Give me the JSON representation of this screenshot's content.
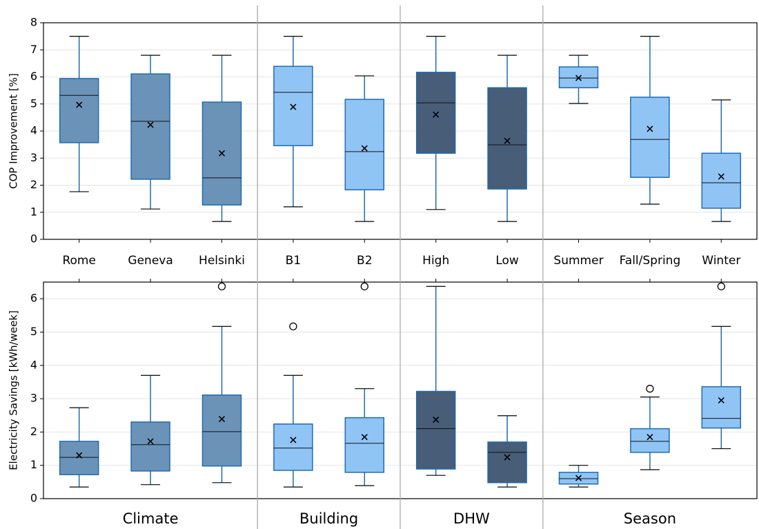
{
  "chart_data": [
    {
      "type": "box",
      "y_label": "COP Improvement [%]",
      "ylim": [
        0,
        8
      ],
      "yticks": [
        0,
        1,
        2,
        3,
        4,
        5,
        6,
        7,
        8
      ],
      "grid": true,
      "series": [
        {
          "color": "#6b93b8",
          "categories": [
            "Rome",
            "Geneva",
            "Helsinki"
          ],
          "boxes": [
            {
              "min": 1.76,
              "q1": 3.57,
              "median": 5.32,
              "q3": 5.94,
              "max": 7.5,
              "mean": 4.97,
              "outliers": []
            },
            {
              "min": 1.12,
              "q1": 2.22,
              "median": 4.36,
              "q3": 6.11,
              "max": 6.8,
              "mean": 4.23,
              "outliers": []
            },
            {
              "min": 0.66,
              "q1": 1.27,
              "median": 2.27,
              "q3": 5.07,
              "max": 6.8,
              "mean": 3.18,
              "outliers": []
            }
          ]
        },
        {
          "color": "#90c4f5",
          "categories": [
            "B1",
            "B2"
          ],
          "boxes": [
            {
              "min": 1.2,
              "q1": 3.46,
              "median": 5.43,
              "q3": 6.39,
              "max": 7.5,
              "mean": 4.89,
              "outliers": []
            },
            {
              "min": 0.66,
              "q1": 1.83,
              "median": 3.24,
              "q3": 5.17,
              "max": 6.04,
              "mean": 3.36,
              "outliers": []
            }
          ]
        },
        {
          "color": "#475d78",
          "categories": [
            "High",
            "Low"
          ],
          "boxes": [
            {
              "min": 1.1,
              "q1": 3.18,
              "median": 5.04,
              "q3": 6.17,
              "max": 7.5,
              "mean": 4.61,
              "outliers": []
            },
            {
              "min": 0.66,
              "q1": 1.86,
              "median": 3.49,
              "q3": 5.6,
              "max": 6.8,
              "mean": 3.64,
              "outliers": []
            }
          ]
        },
        {
          "color": "#90c4f5",
          "categories": [
            "Summer",
            "Fall/Spring",
            "Winter"
          ],
          "boxes": [
            {
              "min": 5.02,
              "q1": 5.6,
              "median": 5.96,
              "q3": 6.37,
              "max": 6.8,
              "mean": 5.96,
              "outliers": []
            },
            {
              "min": 1.3,
              "q1": 2.29,
              "median": 3.69,
              "q3": 5.25,
              "max": 7.5,
              "mean": 4.08,
              "outliers": []
            },
            {
              "min": 0.66,
              "q1": 1.15,
              "median": 2.09,
              "q3": 3.18,
              "max": 5.15,
              "mean": 2.32,
              "outliers": []
            }
          ]
        }
      ]
    },
    {
      "type": "box",
      "y_label": "Electricity Savings [kWh/week]",
      "ylim": [
        0,
        6.5
      ],
      "yticks": [
        0,
        1,
        2,
        3,
        4,
        5,
        6
      ],
      "grid": true,
      "series": [
        {
          "name": "Climate",
          "color": "#6b93b8",
          "boxes": [
            {
              "min": 0.35,
              "q1": 0.72,
              "median": 1.24,
              "q3": 1.72,
              "max": 2.73,
              "mean": 1.3,
              "outliers": []
            },
            {
              "min": 0.42,
              "q1": 0.83,
              "median": 1.62,
              "q3": 2.3,
              "max": 3.7,
              "mean": 1.72,
              "outliers": []
            },
            {
              "min": 0.48,
              "q1": 0.98,
              "median": 2.01,
              "q3": 3.11,
              "max": 5.17,
              "mean": 2.39,
              "outliers": [
                6.37
              ]
            }
          ]
        },
        {
          "name": "Building",
          "color": "#90c4f5",
          "boxes": [
            {
              "min": 0.35,
              "q1": 0.85,
              "median": 1.52,
              "q3": 2.24,
              "max": 3.7,
              "mean": 1.76,
              "outliers": [
                5.17
              ]
            },
            {
              "min": 0.39,
              "q1": 0.79,
              "median": 1.66,
              "q3": 2.43,
              "max": 3.3,
              "mean": 1.85,
              "outliers": [
                6.37
              ]
            }
          ]
        },
        {
          "name": "DHW",
          "color": "#475d78",
          "boxes": [
            {
              "min": 0.7,
              "q1": 0.89,
              "median": 2.1,
              "q3": 3.22,
              "max": 6.37,
              "mean": 2.37,
              "outliers": []
            },
            {
              "min": 0.35,
              "q1": 0.48,
              "median": 1.39,
              "q3": 1.7,
              "max": 2.49,
              "mean": 1.24,
              "outliers": []
            }
          ]
        },
        {
          "name": "Season",
          "color": "#90c4f5",
          "boxes": [
            {
              "min": 0.35,
              "q1": 0.44,
              "median": 0.6,
              "q3": 0.79,
              "max": 1.0,
              "mean": 0.62,
              "outliers": []
            },
            {
              "min": 0.87,
              "q1": 1.39,
              "median": 1.72,
              "q3": 2.1,
              "max": 3.05,
              "mean": 1.85,
              "outliers": [
                3.3
              ]
            },
            {
              "min": 1.5,
              "q1": 2.12,
              "median": 2.41,
              "q3": 3.36,
              "max": 5.17,
              "mean": 2.95,
              "outliers": [
                6.37
              ]
            }
          ]
        }
      ]
    }
  ]
}
